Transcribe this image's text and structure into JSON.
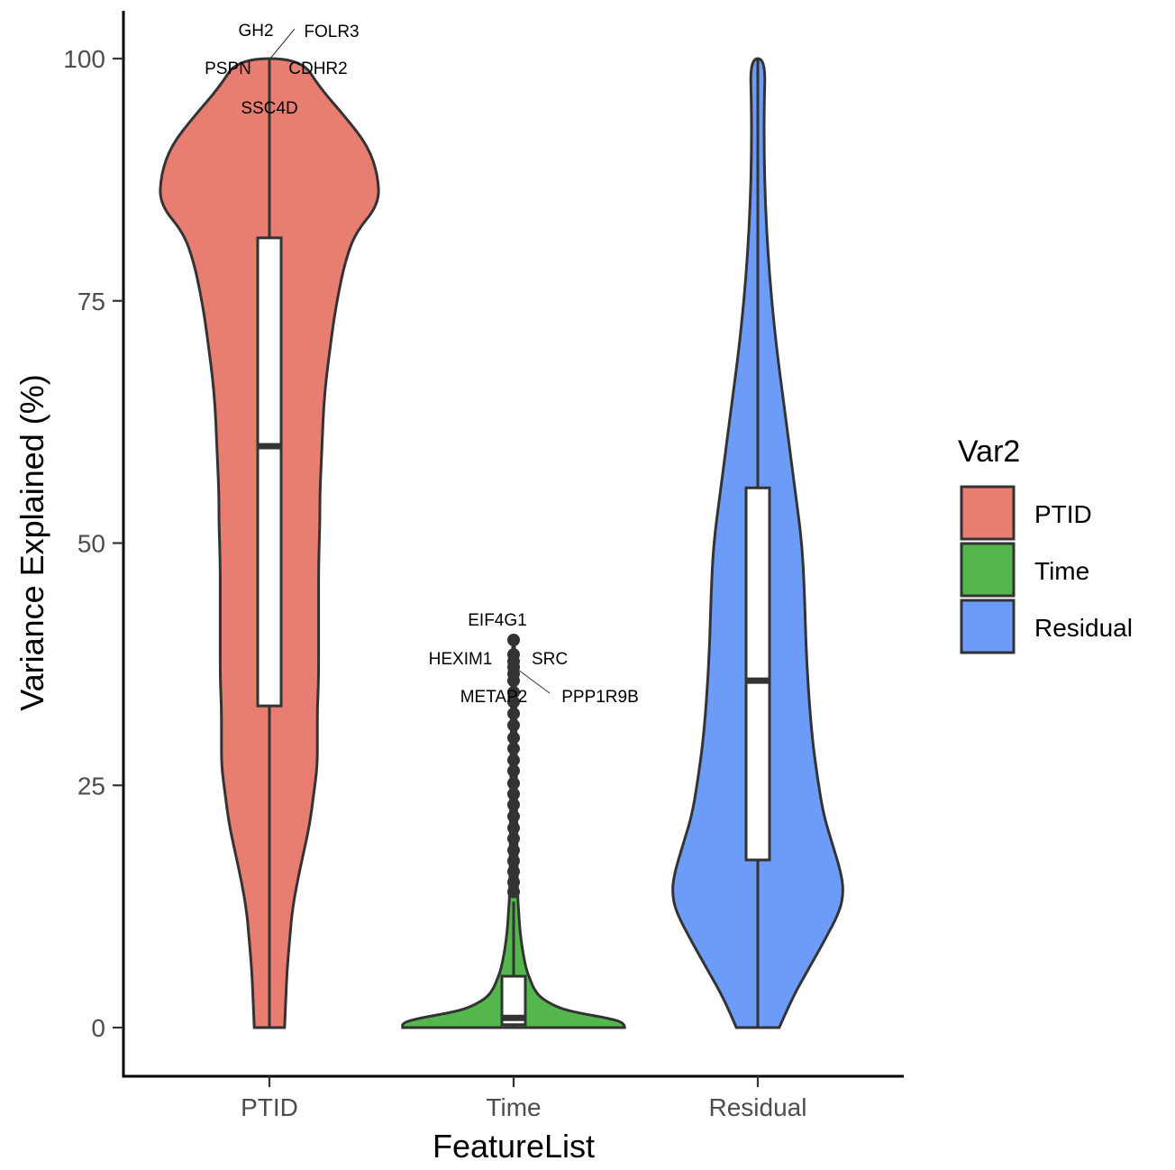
{
  "chart_data": {
    "type": "violin",
    "title": "",
    "xlabel": "FeatureList",
    "ylabel": "Variance Explained (%)",
    "ylim": [
      -5,
      105
    ],
    "yticks": [
      0,
      25,
      50,
      75,
      100
    ],
    "categories": [
      "PTID",
      "Time",
      "Residual"
    ],
    "legend": {
      "title": "Var2",
      "position": "right",
      "entries": [
        "PTID",
        "Time",
        "Residual"
      ]
    },
    "colors": {
      "PTID": "#E87D72",
      "Time": "#53B74C",
      "Residual": "#6D9CF8"
    },
    "series": [
      {
        "name": "PTID",
        "box": {
          "q1": 33.2,
          "median": 60.0,
          "q3": 81.5,
          "min": 0,
          "max": 100
        },
        "density": [
          [
            0,
            0.12
          ],
          [
            3,
            0.13
          ],
          [
            6,
            0.14
          ],
          [
            9,
            0.16
          ],
          [
            12,
            0.18
          ],
          [
            15,
            0.22
          ],
          [
            18,
            0.27
          ],
          [
            21,
            0.32
          ],
          [
            24,
            0.35
          ],
          [
            27,
            0.38
          ],
          [
            30,
            0.38
          ],
          [
            33,
            0.38
          ],
          [
            36,
            0.39
          ],
          [
            40,
            0.39
          ],
          [
            44,
            0.39
          ],
          [
            48,
            0.39
          ],
          [
            52,
            0.4
          ],
          [
            55,
            0.4
          ],
          [
            58,
            0.41
          ],
          [
            61,
            0.42
          ],
          [
            64,
            0.43
          ],
          [
            67,
            0.45
          ],
          [
            70,
            0.48
          ],
          [
            73,
            0.51
          ],
          [
            76,
            0.55
          ],
          [
            79,
            0.6
          ],
          [
            82,
            0.68
          ],
          [
            85,
            0.87
          ],
          [
            88,
            0.86
          ],
          [
            91,
            0.78
          ],
          [
            94,
            0.6
          ],
          [
            97,
            0.4
          ],
          [
            100,
            0.25
          ]
        ],
        "outliers": [],
        "labels": [
          {
            "text": "GH2",
            "value": 100
          },
          {
            "text": "FOLR3",
            "value": 100
          },
          {
            "text": "PSPN",
            "value": 100
          },
          {
            "text": "CDHR2",
            "value": 100
          },
          {
            "text": "SSC4D",
            "value": 100
          }
        ]
      },
      {
        "name": "Time",
        "box": {
          "q1": 0.3,
          "median": 1.0,
          "q3": 5.3,
          "min": 0,
          "max": 13
        },
        "density": [
          [
            0,
            0.88
          ],
          [
            0.5,
            0.88
          ],
          [
            1,
            0.74
          ],
          [
            1.5,
            0.52
          ],
          [
            2,
            0.36
          ],
          [
            3,
            0.22
          ],
          [
            4,
            0.16
          ],
          [
            5,
            0.13
          ],
          [
            6,
            0.1
          ],
          [
            8,
            0.07
          ],
          [
            10,
            0.05
          ],
          [
            12,
            0.04
          ],
          [
            14,
            0.03
          ],
          [
            20,
            0.025
          ],
          [
            30,
            0.02
          ],
          [
            35,
            0.015
          ],
          [
            40,
            0.008
          ]
        ],
        "outliers": [
          40.0,
          38.5,
          37.8,
          37.2,
          36.5,
          35.8,
          34.6,
          33.6,
          32.4,
          31.2,
          29.9,
          28.8,
          27.6,
          26.5,
          25.2,
          24.1,
          23.0,
          21.8,
          20.6,
          19.5,
          18.3,
          17.2,
          16.1,
          15.0,
          14.0
        ],
        "labels": [
          {
            "text": "EIF4G1",
            "value": 40.0
          },
          {
            "text": "HEXIM1",
            "value": 38.0
          },
          {
            "text": "SRC",
            "value": 38.0
          },
          {
            "text": "METAP2",
            "value": 37.0
          },
          {
            "text": "PPP1R9B",
            "value": 37.0
          }
        ]
      },
      {
        "name": "Residual",
        "box": {
          "q1": 17.3,
          "median": 35.8,
          "q3": 55.7,
          "min": 0,
          "max": 100
        },
        "density": [
          [
            0,
            0.17
          ],
          [
            3,
            0.27
          ],
          [
            6,
            0.4
          ],
          [
            9,
            0.53
          ],
          [
            12,
            0.65
          ],
          [
            14,
            0.68
          ],
          [
            16,
            0.66
          ],
          [
            19,
            0.59
          ],
          [
            22,
            0.52
          ],
          [
            26,
            0.47
          ],
          [
            30,
            0.43
          ],
          [
            35,
            0.4
          ],
          [
            40,
            0.38
          ],
          [
            45,
            0.37
          ],
          [
            50,
            0.35
          ],
          [
            55,
            0.3
          ],
          [
            60,
            0.25
          ],
          [
            65,
            0.2
          ],
          [
            70,
            0.15
          ],
          [
            75,
            0.11
          ],
          [
            80,
            0.08
          ],
          [
            85,
            0.06
          ],
          [
            90,
            0.05
          ],
          [
            95,
            0.05
          ],
          [
            100,
            0.06
          ]
        ],
        "outliers": [],
        "labels": []
      }
    ]
  }
}
